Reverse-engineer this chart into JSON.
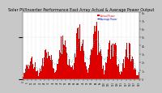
{
  "title": "Solar PV/Inverter Performance East Array Actual & Average Power Output",
  "title_fontsize": 3.5,
  "bg_color": "#c8c8c8",
  "plot_bg_color": "#ffffff",
  "bar_color": "#dd0000",
  "avg_line_color": "#00cccc",
  "legend_line_color": "#0000cc",
  "grid_color": "#bbbbbb",
  "n_bars": 144,
  "ylim_max": 8000,
  "y_ticks": [
    0,
    1000,
    2000,
    3000,
    4000,
    5000,
    6000,
    7000,
    8000
  ],
  "y_tick_labels": [
    "0",
    "1k",
    "2k",
    "3k",
    "4k",
    "5k",
    "6k",
    "7k",
    "8k"
  ],
  "legend_labels": [
    "Actual Power",
    "Average Power"
  ],
  "seed": 7
}
